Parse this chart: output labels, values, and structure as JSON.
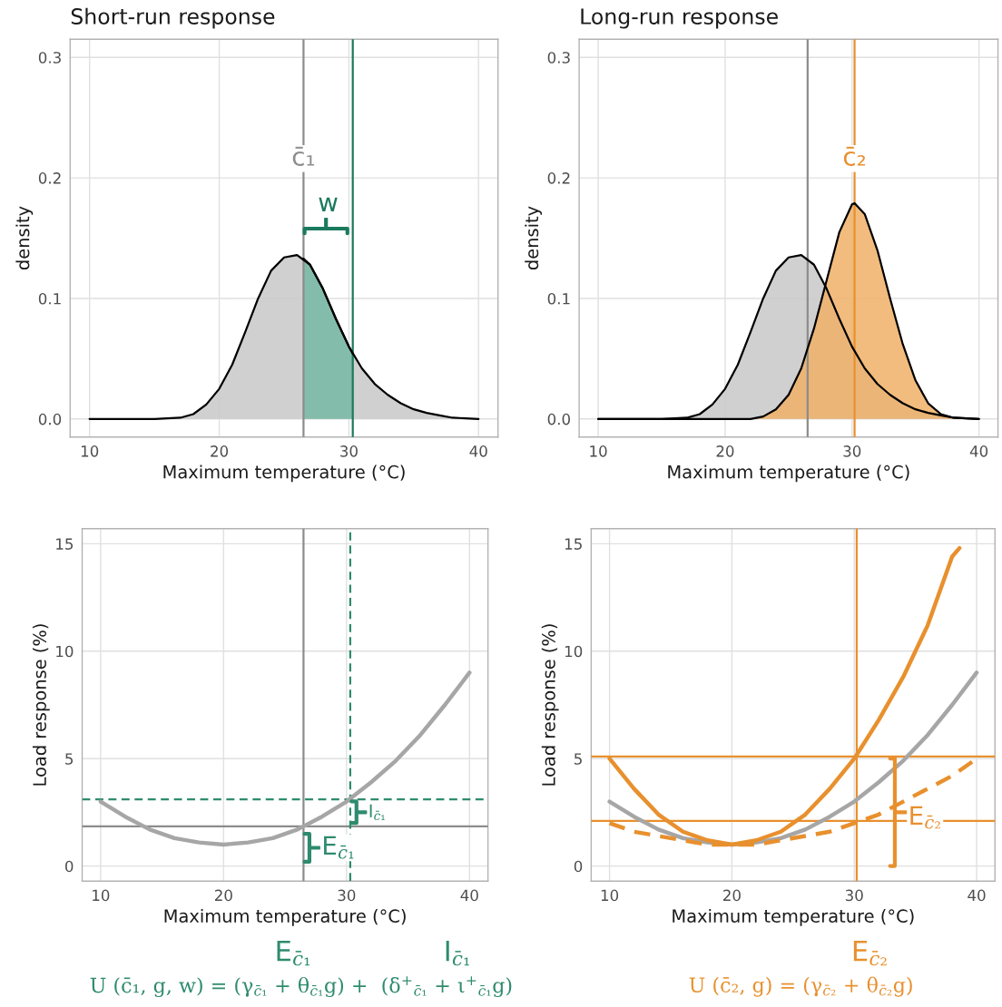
{
  "chart_data": [
    {
      "type": "area",
      "title": "Short-run response",
      "xlabel": "Maximum temperature (°C)",
      "ylabel": "density",
      "xlim": [
        8.5,
        41.5
      ],
      "xticks": [
        10,
        20,
        30,
        40
      ],
      "ylim": [
        -0.015,
        0.315
      ],
      "yticks": [
        {
          "value": 0,
          "label": "0.0"
        },
        0.1,
        0.2,
        0.3
      ],
      "grid": true,
      "series": [
        {
          "color": "#c8c8c8",
          "x": [
            10,
            15,
            17,
            18,
            19,
            20,
            21,
            22,
            23,
            24,
            25,
            26,
            27,
            28,
            29,
            30,
            31,
            32,
            33,
            34,
            35,
            36,
            37,
            38,
            40
          ],
          "values": [
            0,
            0,
            0.001,
            0.004,
            0.012,
            0.025,
            0.045,
            0.072,
            0.1,
            0.123,
            0.134,
            0.136,
            0.128,
            0.108,
            0.083,
            0.06,
            0.042,
            0.029,
            0.02,
            0.013,
            0.008,
            0.005,
            0.003,
            0.001,
            0
          ]
        },
        {
          "color": "#76b8a3",
          "x": [
            26.5,
            27,
            28,
            29,
            30,
            30.3
          ],
          "values": [
            0.133,
            0.128,
            0.108,
            0.083,
            0.06,
            0.054
          ]
        }
      ],
      "ref_lines": [
        {
          "axis": "x",
          "value": 26.5,
          "label": "c̄₁",
          "color": "#8c8c8c"
        },
        {
          "axis": "x",
          "value": 30.3,
          "color": "#1b7a5e"
        }
      ],
      "annotations": [
        "w"
      ]
    },
    {
      "type": "area",
      "title": "Long-run response",
      "xlabel": "Maximum temperature (°C)",
      "ylabel": "density",
      "xlim": [
        8.5,
        41.5
      ],
      "xticks": [
        10,
        20,
        30,
        40
      ],
      "ylim": [
        -0.015,
        0.315
      ],
      "yticks": [
        {
          "value": 0,
          "label": "0.0"
        },
        0.1,
        0.2,
        0.3
      ],
      "grid": true,
      "series": [
        {
          "color": "#c8c8c8",
          "x": [
            10,
            15,
            17,
            18,
            19,
            20,
            21,
            22,
            23,
            24,
            25,
            26,
            27,
            28,
            29,
            30,
            31,
            32,
            33,
            34,
            35,
            36,
            37,
            38,
            40
          ],
          "values": [
            0,
            0,
            0.001,
            0.004,
            0.012,
            0.025,
            0.045,
            0.072,
            0.1,
            0.123,
            0.134,
            0.136,
            0.128,
            0.108,
            0.083,
            0.06,
            0.042,
            0.029,
            0.02,
            0.013,
            0.008,
            0.005,
            0.003,
            0.001,
            0
          ]
        },
        {
          "color": "#f0b067",
          "x": [
            10,
            22,
            23,
            24,
            25,
            26,
            27,
            28,
            29,
            30,
            30.2,
            31,
            32,
            33,
            34,
            35,
            36,
            37,
            38,
            40
          ],
          "values": [
            0,
            0,
            0.002,
            0.008,
            0.02,
            0.042,
            0.075,
            0.115,
            0.155,
            0.178,
            0.179,
            0.17,
            0.14,
            0.1,
            0.062,
            0.032,
            0.013,
            0.004,
            0.001,
            0
          ]
        }
      ],
      "ref_lines": [
        {
          "axis": "x",
          "value": 26.5,
          "color": "#8c8c8c"
        },
        {
          "axis": "x",
          "value": 30.2,
          "label": "c̄₂",
          "color": "#e8902e"
        }
      ]
    },
    {
      "type": "line",
      "xlabel": "Maximum temperature (°C)",
      "ylabel": "Load response (%)",
      "xlim": [
        8.5,
        41.5
      ],
      "xticks": [
        10,
        20,
        30,
        40
      ],
      "ylim": [
        -0.7,
        15.7
      ],
      "yticks": [
        0,
        5,
        10,
        15
      ],
      "grid": true,
      "series": [
        {
          "color": "#a6a6a6",
          "x": [
            10,
            12,
            14,
            16,
            18,
            20,
            22,
            24,
            26,
            28,
            30,
            32,
            34,
            36,
            38,
            40
          ],
          "values": [
            3,
            2.3,
            1.7,
            1.3,
            1.1,
            1,
            1.1,
            1.3,
            1.7,
            2.3,
            3,
            3.9,
            4.9,
            6.1,
            7.5,
            9
          ]
        }
      ],
      "ref_lines": [
        {
          "axis": "x",
          "value": 26.5,
          "color": "#8c8c8c"
        },
        {
          "axis": "y",
          "value": 1.85,
          "color": "#8c8c8c"
        },
        {
          "axis": "y",
          "value": 3.1,
          "color": "#2e8b6e",
          "line_style": "dashed"
        },
        {
          "axis": "x",
          "value": 30.3,
          "color": "#2e8b6e",
          "line_style": "dashed"
        }
      ],
      "annotations": [
        "E$_{c̄₁}$",
        "I$_{c̄₁}$",
        "E$_{c̄₁}$",
        "I$_{c̄₁}$",
        "U (c̄₁, g, w) = (γ$_{c̄₁}$ + θ$_{c̄₁}$g) +  (δ$^{+}$$_{c̄₁}$ + ι$^{+}$$_{c̄₁}$g)"
      ]
    },
    {
      "type": "line",
      "xlabel": "Maximum temperature (°C)",
      "ylabel": "Load response (%)",
      "xlim": [
        8.5,
        41.5
      ],
      "xticks": [
        10,
        20,
        30,
        40
      ],
      "ylim": [
        -0.7,
        15.7
      ],
      "yticks": [
        0,
        5,
        10,
        15
      ],
      "grid": true,
      "series": [
        {
          "color": "#a6a6a6",
          "x": [
            10,
            12,
            14,
            16,
            18,
            20,
            22,
            24,
            26,
            28,
            30,
            32,
            34,
            36,
            38,
            40
          ],
          "values": [
            3,
            2.3,
            1.7,
            1.3,
            1.1,
            1,
            1.1,
            1.3,
            1.7,
            2.3,
            3,
            3.9,
            4.9,
            6.1,
            7.5,
            9
          ]
        },
        {
          "color": "#e8902e",
          "x": [
            10,
            12,
            14,
            16,
            18,
            20,
            22,
            24,
            26,
            28,
            30,
            32,
            34,
            36,
            38,
            38.6
          ],
          "values": [
            5,
            3.6,
            2.4,
            1.6,
            1.2,
            1,
            1.2,
            1.6,
            2.4,
            3.6,
            5,
            6.8,
            8.8,
            11.2,
            14.4,
            14.8
          ]
        },
        {
          "color": "#e8902e",
          "line_style": "dashed",
          "x": [
            10,
            12,
            14,
            16,
            18,
            20,
            22,
            24,
            26,
            28,
            30,
            32,
            34,
            36,
            38,
            40
          ],
          "values": [
            2,
            1.6,
            1.4,
            1.2,
            1,
            1,
            1,
            1.2,
            1.4,
            1.6,
            2,
            2.4,
            3,
            3.6,
            4.2,
            5
          ]
        }
      ],
      "ref_lines": [
        {
          "axis": "y",
          "value": 5.1,
          "color": "#e8902e"
        },
        {
          "axis": "y",
          "value": 2.1,
          "color": "#e8902e"
        },
        {
          "axis": "x",
          "value": 30.2,
          "color": "#e8902e"
        }
      ],
      "annotations": [
        "E$_{c̄₂}$",
        "E$_{c̄₂}$",
        "U (c̄₂, g) = (γ$_{c̄₂}$ + θ$_{c̄₂}$g)"
      ]
    }
  ]
}
